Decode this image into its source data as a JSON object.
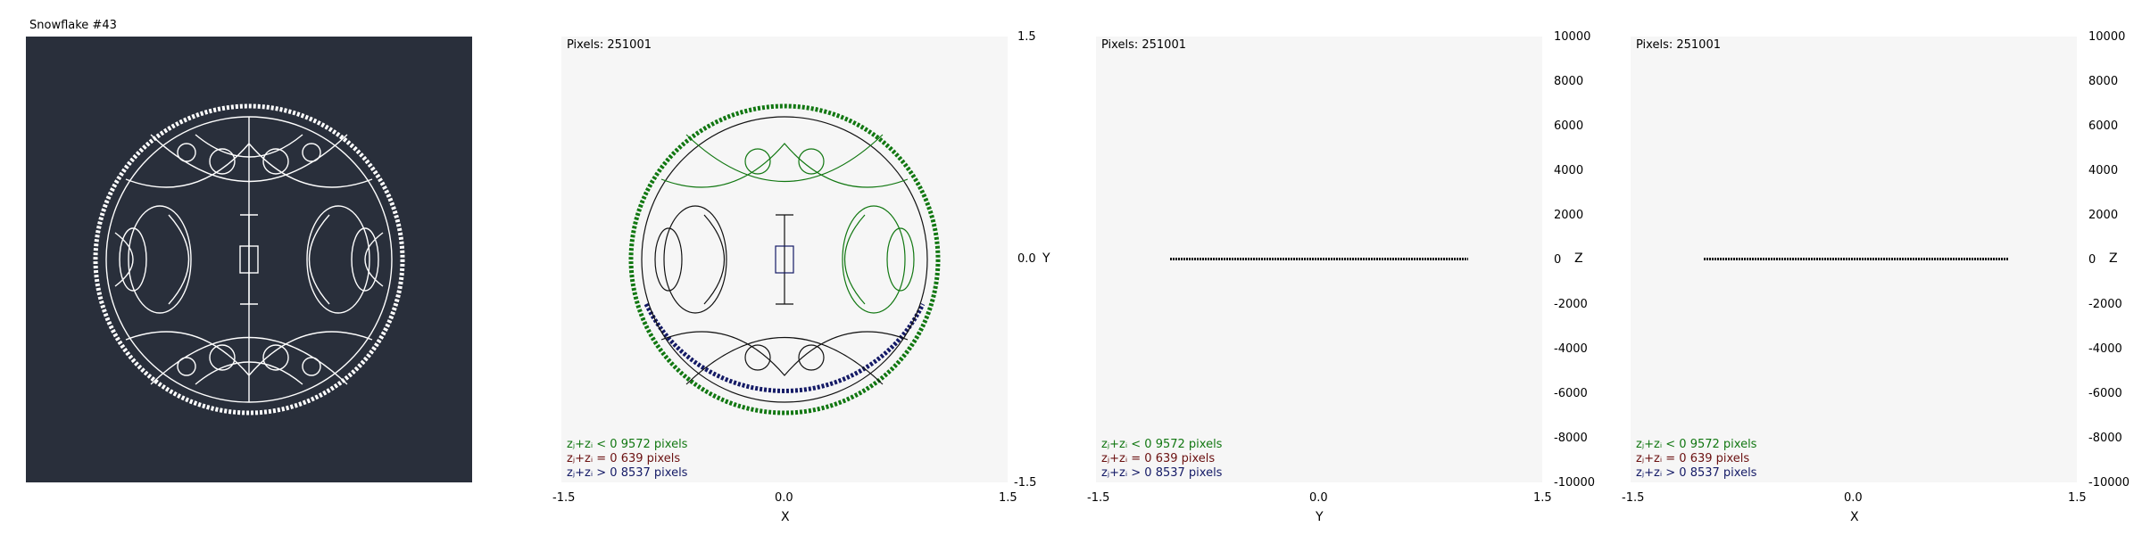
{
  "app": {
    "title": "Snowflake #43"
  },
  "panels": {
    "xy": {
      "pixels_label": "Pixels: 251001",
      "x_ticks": [
        "-1.5",
        "0.0",
        "1.5"
      ],
      "y_ticks": [
        "1.5",
        "0.0",
        "-1.5"
      ],
      "x_axis_name": "X",
      "y_axis_name": "Y"
    },
    "yz": {
      "pixels_label": "Pixels: 251001",
      "x_ticks": [
        "-1.5",
        "0.0",
        "1.5"
      ],
      "z_ticks": [
        "10000",
        "8000",
        "6000",
        "4000",
        "2000",
        "0",
        "-2000",
        "-4000",
        "-6000",
        "-8000",
        "-10000"
      ],
      "x_axis_name": "Y",
      "z_axis_name": "Z"
    },
    "xz": {
      "pixels_label": "Pixels: 251001",
      "x_ticks": [
        "-1.5",
        "0.0",
        "1.5"
      ],
      "z_ticks": [
        "10000",
        "8000",
        "6000",
        "4000",
        "2000",
        "0",
        "-2000",
        "-4000",
        "-6000",
        "-8000",
        "-10000"
      ],
      "x_axis_name": "X",
      "z_axis_name": "Z"
    }
  },
  "stats": {
    "negative": "zⱼ+zᵢ < 0  9572 pixels",
    "zero": "zⱼ+zᵢ = 0  639 pixels",
    "positive": "zⱼ+zᵢ > 0  8537 pixels"
  },
  "colors": {
    "background_dark": "#292f3b",
    "plot_background": "#f6f6f6",
    "negative": "#117711",
    "zero": "#6b1111",
    "positive": "#141a66"
  }
}
